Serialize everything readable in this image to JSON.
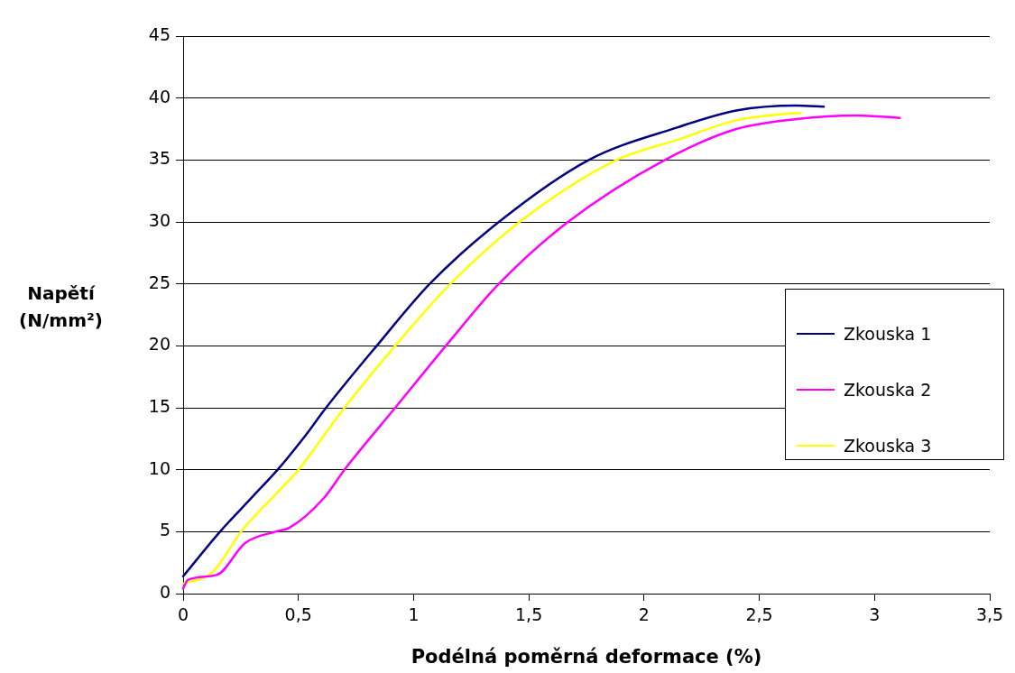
{
  "chart_data": {
    "type": "line",
    "xlabel": "Podélná poměrná deformace (%)",
    "ylabel": "Napětí (N/mm²)",
    "xlim": [
      0,
      3.5
    ],
    "xticks": [
      0,
      {
        "value": 0.5,
        "label": "0,5"
      },
      1,
      {
        "value": 1.5,
        "label": "1,5"
      },
      2,
      {
        "value": 2.5,
        "label": "2,5"
      },
      3,
      {
        "value": 3.5,
        "label": "3,5"
      }
    ],
    "ylim": [
      0,
      45
    ],
    "yticks": [
      0,
      5,
      10,
      15,
      20,
      25,
      30,
      35,
      40,
      45
    ],
    "grid": "y",
    "legend": "right",
    "marker": "none",
    "line_style": "solid",
    "series": [
      {
        "name": "Zkouska 1",
        "color": "#000080",
        "x": [
          0,
          0.16,
          0.3,
          0.41,
          0.52,
          0.62,
          0.84,
          1.07,
          1.37,
          1.76,
          2.14,
          2.4,
          2.66,
          2.78
        ],
        "values": [
          1.4,
          5,
          7.8,
          10,
          12.5,
          15,
          20,
          25,
          30,
          35,
          37.6,
          39,
          39.4,
          39.3
        ]
      },
      {
        "name": "Zkouska 2",
        "color": "#ff00ff",
        "x": [
          0,
          0.02,
          0.145,
          0.27,
          0.4,
          0.46,
          0.61,
          0.7,
          0.92,
          1.14,
          1.37,
          1.67,
          2.09,
          2.4,
          2.66,
          2.92,
          3.11
        ],
        "values": [
          0.4,
          1.1,
          1.5,
          4.1,
          5,
          5.3,
          7.7,
          10,
          15,
          20,
          25,
          30,
          35,
          37.5,
          38.3,
          38.6,
          38.4
        ]
      },
      {
        "name": "Zkouska 3",
        "color": "#ffff00",
        "x": [
          0,
          0.125,
          0.26,
          0.5,
          0.7,
          0.92,
          1.16,
          1.46,
          1.88,
          2.14,
          2.4,
          2.6,
          2.68
        ],
        "values": [
          0.8,
          1.7,
          5.2,
          10,
          15,
          20,
          25,
          30,
          35,
          36.6,
          38.2,
          38.7,
          38.8
        ]
      }
    ]
  }
}
